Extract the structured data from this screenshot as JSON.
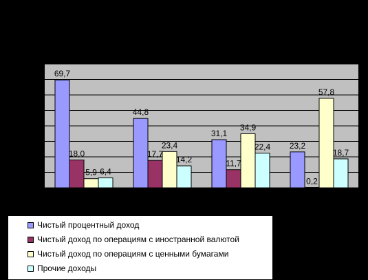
{
  "chart_data": {
    "type": "bar",
    "categories": [
      "",
      "",
      "",
      ""
    ],
    "series": [
      {
        "name": "Чистый процентный доход",
        "color": "#9999ff",
        "values": [
          69.7,
          44.8,
          31.1,
          23.2
        ],
        "labels": [
          "69,7",
          "44,8",
          "31,1",
          "23,2"
        ]
      },
      {
        "name": "Чистый доход по операциям с иностранной валютой",
        "color": "#993366",
        "values": [
          18.0,
          17.7,
          11.7,
          0.2
        ],
        "labels": [
          "18,0",
          "17,7",
          "11,7",
          "0,2"
        ]
      },
      {
        "name": "Чистый доход по операциям с ценными бумагами",
        "color": "#ffffcc",
        "values": [
          5.9,
          23.4,
          34.9,
          57.8
        ],
        "labels": [
          "5,9",
          "23,4",
          "34,9",
          "57,8"
        ]
      },
      {
        "name": "Прочие доходы",
        "color": "#ccffff",
        "values": [
          6.4,
          14.2,
          22.4,
          18.7
        ],
        "labels": [
          "6,4",
          "14,2",
          "22,4",
          "18,7"
        ]
      }
    ],
    "title": "",
    "xlabel": "",
    "ylabel": "",
    "ylim": [
      0,
      80
    ],
    "grid": true,
    "legend_position": "bottom-left",
    "colors": {
      "page_background": "#000000",
      "plot_background": "#c0c0c0",
      "gridline": "#000000",
      "legend_background": "#ffffff",
      "label_text": "#000000"
    }
  }
}
